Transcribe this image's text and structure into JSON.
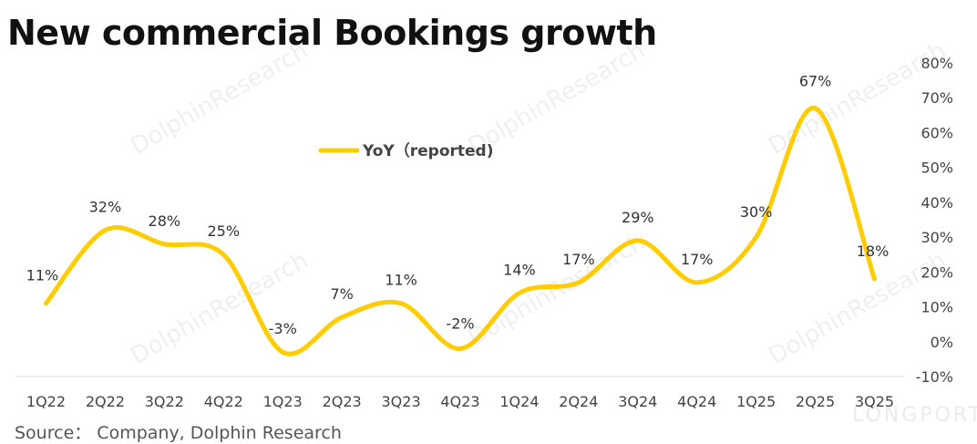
{
  "chart_data": {
    "type": "line",
    "title": "New commercial Bookings growth",
    "categories": [
      "1Q22",
      "2Q22",
      "3Q22",
      "4Q22",
      "1Q23",
      "2Q23",
      "3Q23",
      "4Q23",
      "1Q24",
      "2Q24",
      "3Q24",
      "4Q24",
      "1Q25",
      "2Q25",
      "3Q25"
    ],
    "series": [
      {
        "name": "YoY (reported)",
        "values": [
          11,
          32,
          28,
          25,
          -3,
          7,
          11,
          -2,
          14,
          17,
          29,
          17,
          30,
          67,
          18
        ],
        "labels": [
          "11%",
          "32%",
          "28%",
          "25%",
          "-3%",
          "7%",
          "11%",
          "-2%",
          "14%",
          "17%",
          "29%",
          "17%",
          "30%",
          "67%",
          "18%"
        ],
        "color": "#FFCC00"
      }
    ],
    "ylim": [
      -10,
      80
    ],
    "yticks": [
      "-10%",
      "0%",
      "10%",
      "20%",
      "30%",
      "40%",
      "50%",
      "60%",
      "70%",
      "80%"
    ],
    "legend": {
      "label": "YoY（reported)"
    },
    "source": "Source：  Company, Dolphin Research"
  },
  "watermark": {
    "text": "DolphinResearch",
    "brand": "LONGPORT"
  }
}
